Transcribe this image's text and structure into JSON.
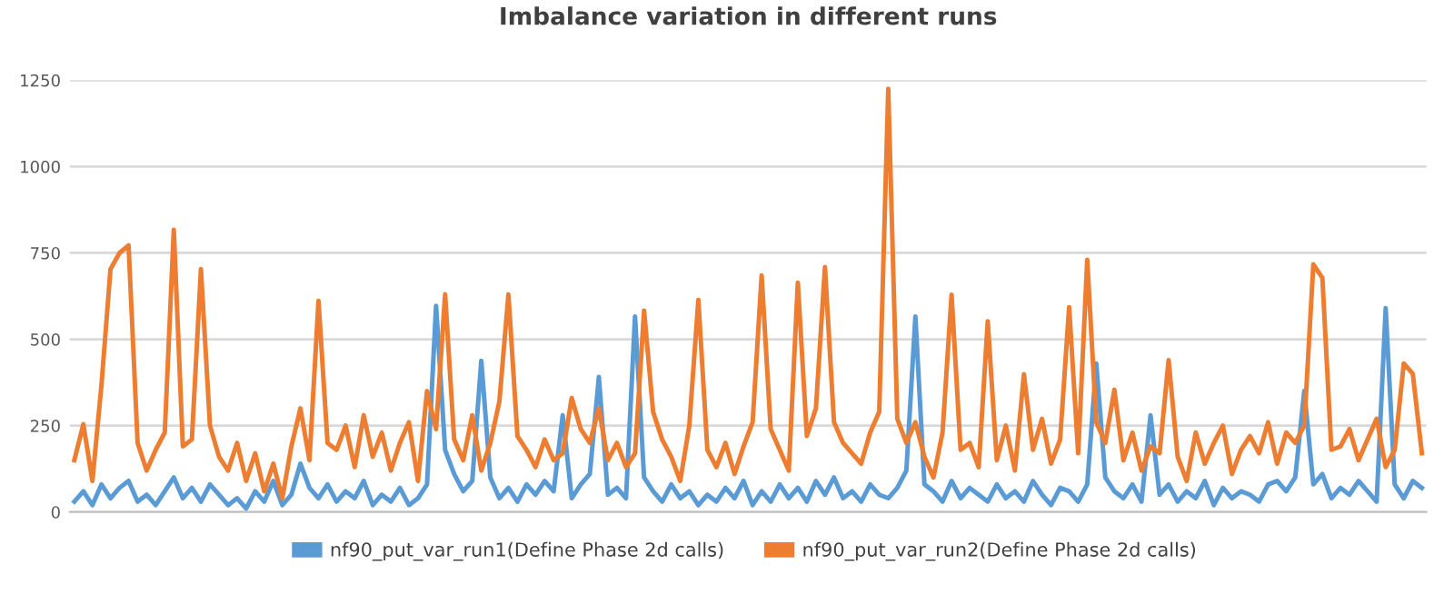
{
  "chart_data": {
    "type": "line",
    "title": "Imbalance variation in different runs",
    "categories": [
      null,
      null,
      null,
      null,
      null,
      null,
      null,
      null,
      null,
      null,
      null,
      null,
      null,
      null,
      null,
      null,
      null,
      null,
      null,
      null,
      null,
      null,
      null,
      null,
      null,
      null,
      null,
      null,
      null,
      null,
      null,
      null,
      null,
      null,
      null,
      null,
      null,
      null,
      null,
      null,
      null,
      null,
      null,
      null,
      null,
      null,
      null,
      null,
      null,
      null,
      null,
      null,
      null,
      null,
      null,
      null,
      null,
      null,
      null,
      null,
      null,
      null,
      null,
      null,
      null,
      null,
      null,
      null,
      null,
      null,
      null,
      null,
      null,
      null,
      null,
      null,
      null,
      null,
      null,
      null,
      null,
      null,
      null,
      null,
      null,
      null,
      null,
      null,
      null,
      null,
      null,
      null,
      null,
      null,
      null,
      null,
      null,
      null,
      null,
      null,
      null,
      null,
      null,
      null,
      null,
      null,
      null,
      null,
      null,
      null,
      null,
      null,
      null,
      null,
      null,
      null,
      null,
      null,
      null,
      null,
      null,
      null,
      null,
      null,
      null,
      null,
      null,
      null,
      null,
      null,
      null,
      null,
      null,
      null,
      null,
      null,
      null,
      null,
      null,
      null,
      null,
      null,
      null,
      null,
      null,
      null,
      null,
      null,
      null,
      null
    ],
    "series": [
      {
        "name": "nf90_put_var_run1(Define Phase 2d calls)",
        "color": "#5b9bd5",
        "values": [
          30,
          60,
          20,
          80,
          40,
          70,
          90,
          30,
          50,
          20,
          60,
          100,
          40,
          70,
          30,
          80,
          50,
          20,
          40,
          10,
          60,
          30,
          90,
          20,
          50,
          140,
          70,
          40,
          80,
          30,
          60,
          40,
          90,
          20,
          50,
          30,
          70,
          20,
          40,
          80,
          597,
          180,
          110,
          60,
          90,
          438,
          100,
          40,
          70,
          30,
          80,
          50,
          90,
          60,
          280,
          40,
          80,
          110,
          391,
          50,
          70,
          40,
          566,
          100,
          60,
          30,
          80,
          40,
          60,
          20,
          50,
          30,
          70,
          40,
          90,
          20,
          60,
          30,
          80,
          40,
          70,
          30,
          90,
          50,
          100,
          40,
          60,
          30,
          80,
          50,
          40,
          70,
          120,
          566,
          80,
          60,
          30,
          90,
          40,
          70,
          50,
          30,
          80,
          40,
          60,
          30,
          90,
          50,
          20,
          70,
          60,
          30,
          80,
          430,
          100,
          60,
          40,
          80,
          30,
          280,
          50,
          80,
          30,
          60,
          40,
          90,
          20,
          70,
          40,
          60,
          50,
          30,
          80,
          90,
          60,
          100,
          350,
          80,
          110,
          40,
          70,
          50,
          90,
          60,
          30,
          590,
          80,
          40,
          90,
          70
        ]
      },
      {
        "name": "nf90_put_var_run2(Define Phase 2d calls)",
        "color": "#ed7d31",
        "values": [
          150,
          254,
          90,
          367,
          703,
          750,
          772,
          200,
          120,
          180,
          230,
          817,
          190,
          210,
          703,
          250,
          160,
          120,
          200,
          90,
          170,
          60,
          140,
          40,
          190,
          300,
          150,
          611,
          200,
          180,
          250,
          130,
          280,
          160,
          230,
          120,
          200,
          260,
          90,
          350,
          240,
          630,
          210,
          150,
          280,
          120,
          200,
          320,
          630,
          220,
          180,
          130,
          210,
          150,
          170,
          330,
          240,
          200,
          300,
          150,
          200,
          130,
          170,
          583,
          290,
          210,
          160,
          90,
          250,
          614,
          180,
          130,
          200,
          110,
          190,
          260,
          685,
          240,
          180,
          120,
          664,
          220,
          300,
          709,
          260,
          200,
          170,
          140,
          230,
          290,
          1225,
          270,
          200,
          260,
          160,
          100,
          230,
          629,
          180,
          200,
          130,
          552,
          150,
          250,
          120,
          399,
          180,
          270,
          140,
          210,
          593,
          170,
          730,
          260,
          200,
          354,
          150,
          230,
          120,
          190,
          170,
          440,
          160,
          90,
          230,
          140,
          200,
          250,
          110,
          180,
          220,
          170,
          260,
          140,
          230,
          200,
          250,
          717,
          678,
          180,
          190,
          240,
          150,
          210,
          270,
          130,
          180,
          430,
          400,
          170
        ]
      }
    ],
    "ylim": [
      0,
      1250
    ],
    "yticks": [
      0,
      250,
      500,
      750,
      1000,
      1250
    ],
    "grid": "y",
    "legend": "bottom",
    "tick_labels": "y"
  }
}
